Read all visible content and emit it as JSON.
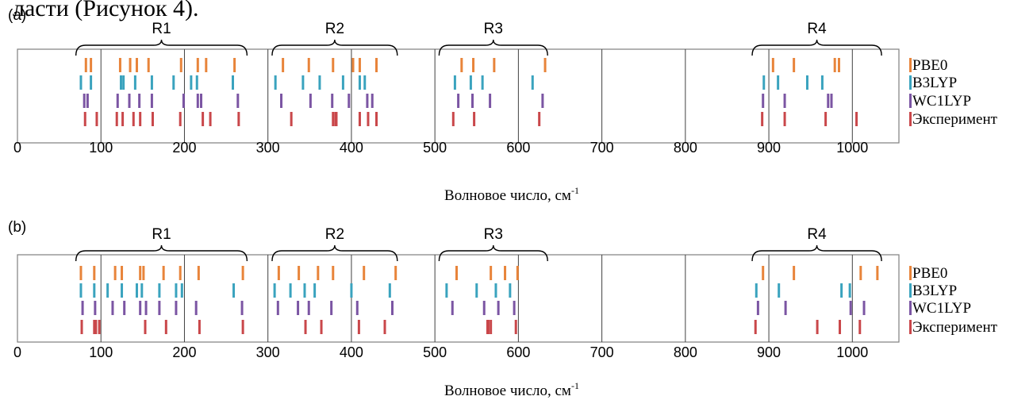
{
  "header_fragment": "ласти (Рисунок 4).",
  "colors": {
    "PBE0": "#E8843A",
    "B3LYP": "#3AA3BE",
    "WC1LYP": "#7B55A3",
    "Эксперимент": "#C9474A",
    "frame": "#7f7f7f",
    "gridline": "#404040"
  },
  "chart_data": [
    {
      "type": "scatter",
      "panel_label": "(a)",
      "xlabel": "Волновое число, см",
      "xlabel_sup": "-1",
      "xlim": [
        0,
        1055
      ],
      "xticks": [
        "0",
        "100",
        "200",
        "300",
        "400",
        "500",
        "600",
        "700",
        "800",
        "900",
        "1000"
      ],
      "xtick_values": [
        0,
        100,
        200,
        300,
        400,
        500,
        600,
        700,
        800,
        900,
        1000
      ],
      "gridlines_x": [
        100,
        200,
        300,
        400,
        500,
        600,
        700,
        800,
        900,
        1000
      ],
      "legend_position": "right",
      "regions": [
        {
          "label": "R1",
          "range": [
            70,
            275
          ]
        },
        {
          "label": "R2",
          "range": [
            305,
            455
          ]
        },
        {
          "label": "R3",
          "range": [
            505,
            635
          ]
        },
        {
          "label": "R4",
          "range": [
            880,
            1035
          ]
        }
      ],
      "series": [
        {
          "name": "PBE0",
          "values": [
            82,
            88,
            123,
            135,
            143,
            157,
            196,
            216,
            226,
            260,
            318,
            349,
            378,
            402,
            410,
            430,
            532,
            546,
            571,
            632,
            905,
            930,
            979,
            984
          ]
        },
        {
          "name": "B3LYP",
          "values": [
            76,
            88,
            124,
            127,
            141,
            161,
            187,
            208,
            215,
            258,
            309,
            342,
            362,
            390,
            410,
            416,
            524,
            543,
            557,
            617,
            894,
            911,
            946,
            964
          ]
        },
        {
          "name": "WC1LYP",
          "values": [
            80,
            84,
            120,
            134,
            146,
            161,
            199,
            216,
            220,
            264,
            316,
            351,
            377,
            397,
            419,
            425,
            528,
            545,
            566,
            629,
            893,
            919,
            971,
            975
          ]
        },
        {
          "name": "Эксперимент",
          "values": [
            81,
            95,
            119,
            126,
            139,
            147,
            162,
            195,
            222,
            231,
            265,
            328,
            378,
            381,
            382,
            410,
            420,
            430,
            522,
            547,
            625,
            892,
            919,
            968,
            1005
          ]
        }
      ]
    },
    {
      "type": "scatter",
      "panel_label": "(b)",
      "xlabel": "Волновое число, см",
      "xlabel_sup": "-1",
      "xlim": [
        0,
        1055
      ],
      "xticks": [
        "0",
        "100",
        "200",
        "300",
        "400",
        "500",
        "600",
        "700",
        "800",
        "900",
        "1000"
      ],
      "xtick_values": [
        0,
        100,
        200,
        300,
        400,
        500,
        600,
        700,
        800,
        900,
        1000
      ],
      "gridlines_x": [
        100,
        200,
        300,
        400,
        500,
        600,
        700,
        800,
        900,
        1000
      ],
      "legend_position": "right",
      "regions": [
        {
          "label": "R1",
          "range": [
            70,
            275
          ]
        },
        {
          "label": "R2",
          "range": [
            305,
            455
          ]
        },
        {
          "label": "R3",
          "range": [
            505,
            635
          ]
        },
        {
          "label": "R4",
          "range": [
            880,
            1035
          ]
        }
      ],
      "series": [
        {
          "name": "PBE0",
          "values": [
            76,
            92,
            117,
            125,
            147,
            151,
            175,
            195,
            217,
            270,
            313,
            337,
            360,
            378,
            415,
            453,
            526,
            567,
            584,
            599,
            893,
            930,
            1010,
            1030
          ]
        },
        {
          "name": "B3LYP",
          "values": [
            76,
            92,
            108,
            125,
            143,
            149,
            170,
            190,
            197,
            259,
            308,
            327,
            344,
            356,
            400,
            446,
            514,
            550,
            573,
            590,
            885,
            912,
            987,
            997
          ]
        },
        {
          "name": "WC1LYP",
          "values": [
            78,
            93,
            114,
            128,
            147,
            154,
            170,
            190,
            214,
            269,
            312,
            336,
            349,
            376,
            407,
            449,
            521,
            559,
            576,
            595,
            887,
            920,
            998,
            1014
          ]
        },
        {
          "name": "Эксперимент",
          "values": [
            77,
            92,
            94,
            98,
            153,
            178,
            218,
            270,
            345,
            364,
            409,
            440,
            563,
            564,
            567,
            597,
            884,
            958,
            985,
            1009
          ]
        }
      ]
    }
  ]
}
